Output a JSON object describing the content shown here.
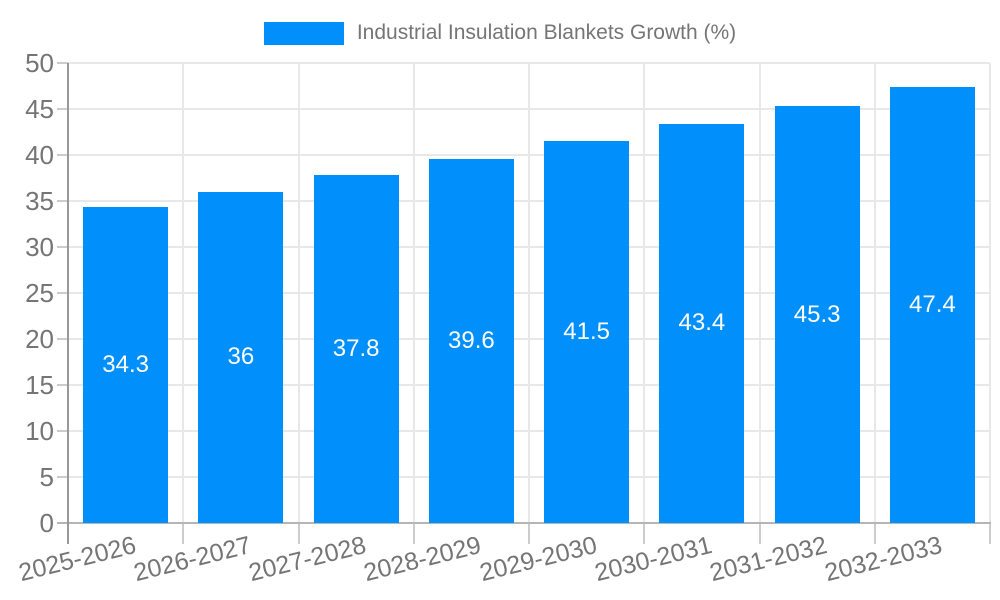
{
  "legend": {
    "label": "Industrial Insulation Blankets Growth (%)"
  },
  "colors": {
    "bar": "#008FFB",
    "grid": "#e8e8e8",
    "y_axis_line": "#999999",
    "x_axis_line": "#b5b5b5",
    "tick": "#cccccc",
    "axis_label": "#757575",
    "data_label": "#ffffff",
    "background": "#ffffff"
  },
  "chart_data": {
    "type": "bar",
    "title": "Industrial Insulation Blankets Growth (%)",
    "categories": [
      "2025-2026",
      "2026-2027",
      "2027-2028",
      "2028-2029",
      "2029-2030",
      "2030-2031",
      "2031-2032",
      "2032-2033"
    ],
    "values": [
      34.3,
      36,
      37.8,
      39.6,
      41.5,
      43.4,
      45.3,
      47.4
    ],
    "value_labels": [
      "34.3",
      "36",
      "37.8",
      "39.6",
      "41.5",
      "43.4",
      "45.3",
      "47.4"
    ],
    "xlabel": "",
    "ylabel": "",
    "ylim": [
      0,
      50
    ],
    "yticks": [
      0,
      5,
      10,
      15,
      20,
      25,
      30,
      35,
      40,
      45,
      50
    ],
    "grid": true,
    "legend_position": "top",
    "x_label_rotation_deg": -14,
    "value_label_position": "center-of-bar"
  }
}
